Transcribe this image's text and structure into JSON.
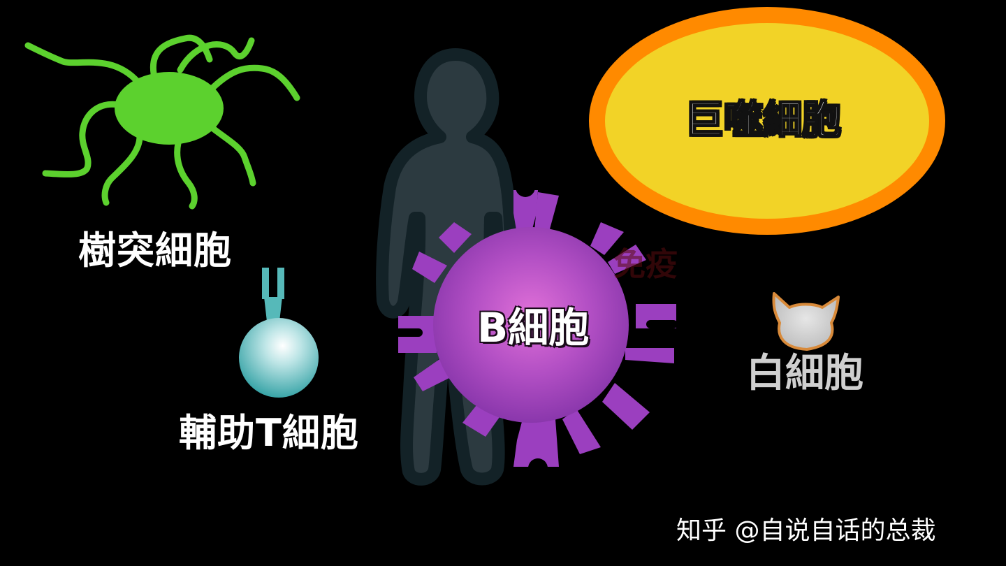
{
  "labels": {
    "dendritic_cell": "樹突細胞",
    "helper_t_cell": "輔助T細胞",
    "macrophage": "巨噬細胞",
    "b_cell": "B細胞",
    "white_blood_cell": "白細胞",
    "background_text": "免疫"
  },
  "watermark": "知乎 @自说自话的总裁",
  "colors": {
    "background": "#000000",
    "dendritic_green": "#5cd12e",
    "macrophage_fill": "#f2d327",
    "macrophage_border": "#ff8a00",
    "b_cell_purple": "#9b3fbf",
    "helper_t_teal": "#56b9b9",
    "human_silhouette": "#2f3f45",
    "white_blood_cell_gray": "#cfcfcf",
    "white_blood_cell_outline": "#d88a3a"
  },
  "icons": [
    "human-silhouette-icon",
    "dendritic-cell-icon",
    "helper-t-cell-icon",
    "macrophage-icon",
    "b-cell-icon",
    "white-blood-cell-cat-icon"
  ]
}
